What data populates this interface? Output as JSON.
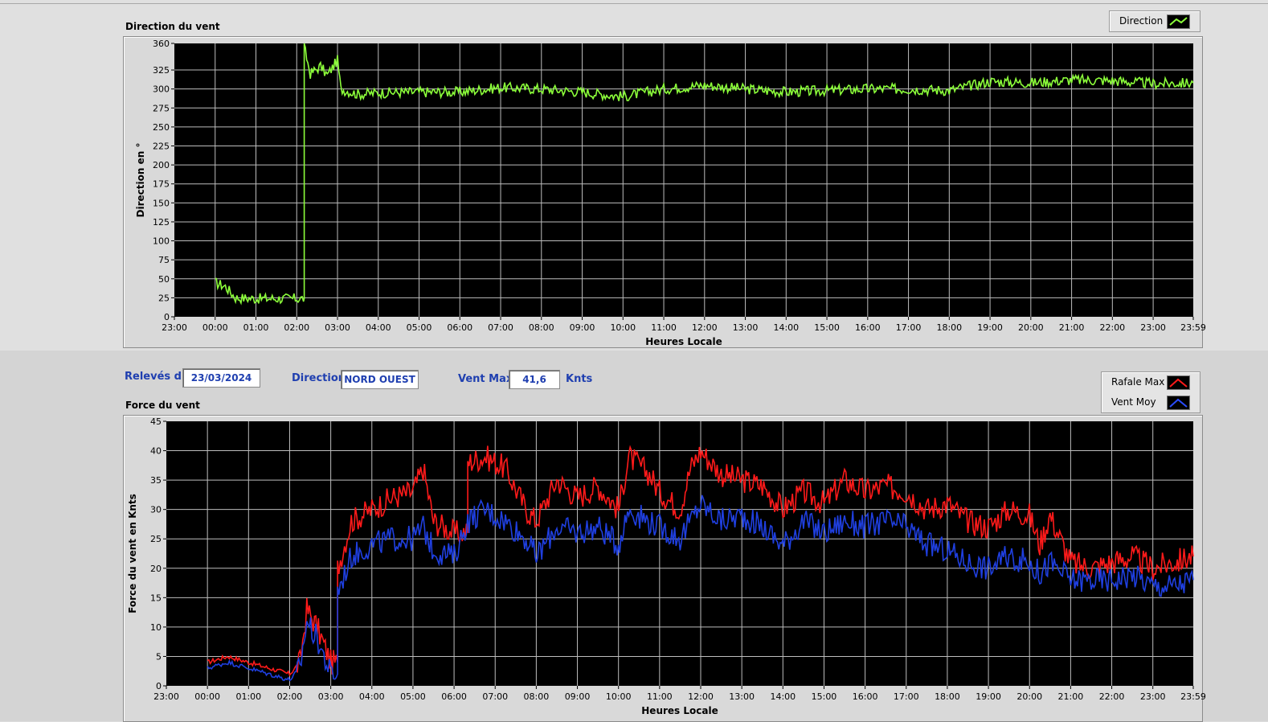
{
  "colors": {
    "direction": "#8cff3a",
    "rafale": "#ff1a1a",
    "moyen": "#1f3fe0",
    "grid": "#bdbdbd",
    "plot_bg": "#000000",
    "label_blue": "#1f3fb0"
  },
  "controls": {
    "releves_label": "Relevés du",
    "releves_value": "23/03/2024",
    "direction_label": "Direction",
    "direction_value": "NORD OUEST",
    "ventmax_label": "Vent Max",
    "ventmax_value": "41,6",
    "ventmax_unit": "Knts"
  },
  "legend_direction": {
    "label": "Direction",
    "icon": "line-icon"
  },
  "legend_force": [
    {
      "label": "Rafale Max",
      "icon": "line-icon",
      "color": "#ff1a1a"
    },
    {
      "label": "Vent Moy",
      "icon": "line-icon",
      "color": "#1f3fe0"
    }
  ],
  "chart_data": [
    {
      "type": "line",
      "title": "Direction du vent",
      "xlabel": "Heures Locale",
      "ylabel": "Direction en °",
      "x_ticks": [
        "23:00",
        "00:00",
        "01:00",
        "02:00",
        "03:00",
        "04:00",
        "05:00",
        "06:00",
        "07:00",
        "08:00",
        "09:00",
        "10:00",
        "11:00",
        "12:00",
        "13:00",
        "14:00",
        "15:00",
        "16:00",
        "17:00",
        "18:00",
        "19:00",
        "20:00",
        "21:00",
        "22:00",
        "23:00",
        "23:59"
      ],
      "y_ticks": [
        0,
        25,
        50,
        75,
        100,
        125,
        150,
        175,
        200,
        225,
        250,
        275,
        300,
        325,
        360
      ],
      "ylim": [
        0,
        360
      ],
      "grid": true,
      "legend": "top-right",
      "series": [
        {
          "name": "Direction",
          "color": "#8cff3a",
          "x": [
            "00:00",
            "00:15",
            "00:30",
            "01:00",
            "01:30",
            "02:00",
            "02:10",
            "02:11",
            "02:20",
            "02:35",
            "02:45",
            "03:00",
            "03:05",
            "03:30",
            "04:00",
            "05:00",
            "06:00",
            "07:00",
            "08:00",
            "09:00",
            "10:00",
            "11:00",
            "12:00",
            "13:00",
            "14:00",
            "15:00",
            "16:00",
            "17:00",
            "18:00",
            "19:00",
            "20:00",
            "21:00",
            "22:00",
            "23:00",
            "23:59"
          ],
          "values": [
            45,
            40,
            25,
            24,
            24,
            24,
            24,
            355,
            320,
            330,
            318,
            338,
            300,
            293,
            295,
            296,
            296,
            302,
            300,
            296,
            290,
            300,
            305,
            300,
            296,
            298,
            300,
            300,
            298,
            310,
            308,
            312,
            311,
            307,
            308
          ]
        }
      ]
    },
    {
      "type": "line",
      "title": "Force du vent",
      "xlabel": "Heures Locale",
      "ylabel": "Force du vent en Knts",
      "x_ticks": [
        "23:00",
        "00:00",
        "01:00",
        "02:00",
        "03:00",
        "04:00",
        "05:00",
        "06:00",
        "07:00",
        "08:00",
        "09:00",
        "10:00",
        "11:00",
        "12:00",
        "13:00",
        "14:00",
        "15:00",
        "16:00",
        "17:00",
        "18:00",
        "19:00",
        "20:00",
        "21:00",
        "22:00",
        "23:00",
        "23:59"
      ],
      "y_ticks": [
        0,
        5,
        10,
        15,
        20,
        25,
        30,
        35,
        40,
        45
      ],
      "ylim": [
        0,
        45
      ],
      "grid": true,
      "legend": "top-right",
      "series": [
        {
          "name": "Rafale Max",
          "color": "#ff1a1a",
          "x": [
            "00:00",
            "00:30",
            "01:00",
            "01:30",
            "02:00",
            "02:15",
            "02:25",
            "02:40",
            "03:00",
            "03:10",
            "03:30",
            "04:00",
            "04:30",
            "05:00",
            "05:15",
            "05:30",
            "06:00",
            "06:20",
            "06:45",
            "07:15",
            "07:45",
            "08:00",
            "08:30",
            "09:00",
            "09:30",
            "10:00",
            "10:15",
            "10:45",
            "11:00",
            "11:30",
            "11:45",
            "12:00",
            "12:30",
            "13:00",
            "13:30",
            "14:00",
            "14:30",
            "15:00",
            "15:30",
            "16:00",
            "16:30",
            "17:00",
            "17:30",
            "18:00",
            "18:30",
            "19:00",
            "19:30",
            "20:00",
            "20:15",
            "20:30",
            "21:00",
            "21:30",
            "22:00",
            "22:30",
            "23:00",
            "23:30",
            "23:59"
          ],
          "values": [
            4,
            5,
            4,
            3,
            2,
            4,
            13,
            10,
            4,
            20,
            28,
            30,
            32,
            33,
            37,
            28,
            26,
            38,
            39,
            37,
            30,
            28,
            35,
            32,
            34,
            30,
            39,
            36,
            33,
            30,
            37,
            40,
            36,
            35,
            34,
            30,
            33,
            31,
            35,
            33,
            34,
            33,
            30,
            31,
            28,
            27,
            30,
            29,
            24,
            29,
            21,
            20,
            21,
            22,
            20,
            21,
            22
          ]
        },
        {
          "name": "Vent Moy",
          "color": "#1f3fe0",
          "x": [
            "00:00",
            "00:30",
            "01:00",
            "01:30",
            "02:00",
            "02:15",
            "02:25",
            "02:40",
            "03:00",
            "03:10",
            "03:30",
            "04:00",
            "04:30",
            "05:00",
            "05:15",
            "05:30",
            "06:00",
            "06:20",
            "06:45",
            "07:15",
            "07:45",
            "08:00",
            "08:30",
            "09:00",
            "09:30",
            "10:00",
            "10:15",
            "10:45",
            "11:00",
            "11:30",
            "11:45",
            "12:00",
            "12:30",
            "13:00",
            "13:30",
            "14:00",
            "14:30",
            "15:00",
            "15:30",
            "16:00",
            "16:30",
            "17:00",
            "17:30",
            "18:00",
            "18:30",
            "19:00",
            "19:30",
            "20:00",
            "20:15",
            "20:30",
            "21:00",
            "21:30",
            "22:00",
            "22:30",
            "23:00",
            "23:30",
            "23:59"
          ],
          "values": [
            3,
            4,
            3,
            2,
            1,
            3,
            11,
            8,
            2,
            16,
            22,
            24,
            25,
            25,
            27,
            23,
            22,
            28,
            30,
            28,
            25,
            22,
            27,
            26,
            27,
            24,
            30,
            28,
            27,
            25,
            28,
            31,
            28,
            29,
            27,
            24,
            28,
            26,
            28,
            27,
            28,
            27,
            24,
            23,
            21,
            20,
            22,
            21,
            19,
            21,
            18,
            18,
            18,
            19,
            17,
            17,
            18
          ]
        }
      ]
    }
  ]
}
